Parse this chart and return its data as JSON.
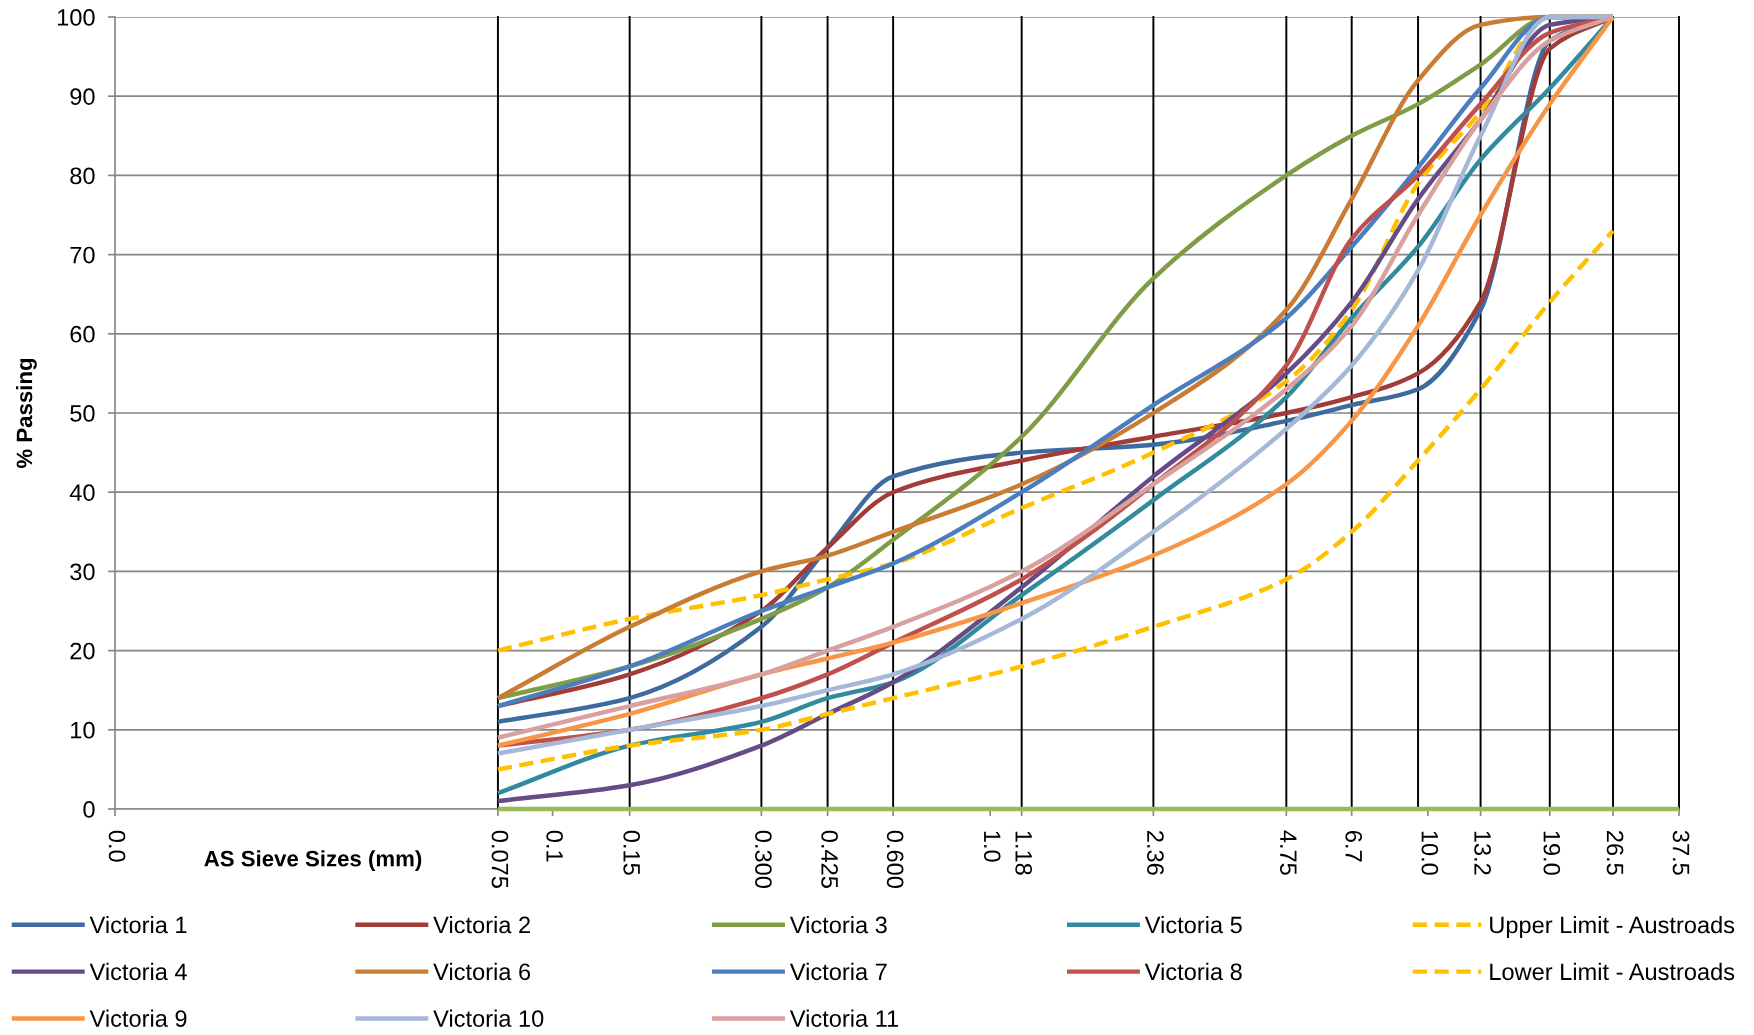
{
  "chart_data": {
    "type": "line",
    "xlabel": "AS Sieve Sizes (mm)",
    "ylabel": "% Passing",
    "log": "x",
    "x": [
      0.075,
      0.15,
      0.3,
      0.425,
      0.6,
      1.18,
      2.36,
      4.75,
      6.7,
      9.5,
      13.2,
      19.0,
      26.5
    ],
    "xlim": [
      0.01,
      37.5
    ],
    "xticks": [
      {
        "value": 0.01,
        "label": "0.0"
      },
      0.075,
      0.1,
      0.15,
      {
        "value": 0.3,
        "label": "0.300"
      },
      0.425,
      {
        "value": 0.6,
        "label": "0.600"
      },
      {
        "value": 1,
        "label": "1.0"
      },
      1.18,
      2.36,
      4.75,
      6.7,
      {
        "value": 10,
        "label": "10.0"
      },
      13.2,
      {
        "value": 19,
        "label": "19.0"
      },
      26.5,
      37.5
    ],
    "ylim": [
      0,
      100
    ],
    "yticks": [
      0,
      10,
      20,
      30,
      40,
      50,
      60,
      70,
      80,
      90,
      100
    ],
    "grid": "y",
    "legend": "bottom",
    "ref_lines": [
      {
        "axis": "x",
        "value": 0.075,
        "color": "#000000"
      },
      {
        "axis": "x",
        "value": 0.15,
        "color": "#000000"
      },
      {
        "axis": "x",
        "value": 0.3,
        "color": "#000000"
      },
      {
        "axis": "x",
        "value": 0.425,
        "color": "#000000"
      },
      {
        "axis": "x",
        "value": 0.6,
        "color": "#000000"
      },
      {
        "axis": "x",
        "value": 1.18,
        "color": "#000000"
      },
      {
        "axis": "x",
        "value": 2.36,
        "color": "#000000"
      },
      {
        "axis": "x",
        "value": 4.75,
        "color": "#000000"
      },
      {
        "axis": "x",
        "value": 6.7,
        "color": "#000000"
      },
      {
        "axis": "x",
        "value": 9.5,
        "color": "#000000"
      },
      {
        "axis": "x",
        "value": 13.2,
        "color": "#000000"
      },
      {
        "axis": "x",
        "value": 19.0,
        "color": "#000000"
      },
      {
        "axis": "x",
        "value": 26.5,
        "color": "#000000"
      }
    ],
    "series": [
      {
        "color": "#9bbb59",
        "x": [
          0.075,
          37.5
        ],
        "values": [
          0,
          0
        ]
      },
      {
        "name": "Victoria 1",
        "color": "#3d6b9e",
        "values": [
          11,
          14,
          23,
          33,
          42,
          45,
          46,
          49,
          51,
          53,
          63,
          97,
          100
        ]
      },
      {
        "name": "Victoria 2",
        "color": "#a13c39",
        "values": [
          13,
          17,
          25,
          33,
          40,
          44,
          47,
          50,
          52,
          55,
          64,
          96,
          100
        ]
      },
      {
        "name": "Victoria 3",
        "color": "#7f9d45",
        "values": [
          14,
          18,
          24,
          28,
          34,
          47,
          67,
          80,
          85,
          89,
          94,
          100,
          100
        ]
      },
      {
        "name": "Victoria 5",
        "color": "#318a9e",
        "values": [
          2,
          8,
          11,
          14,
          16,
          27,
          39,
          52,
          62,
          71,
          82,
          91,
          100
        ]
      },
      {
        "name": "Upper Limit - Austroads",
        "color": "#ffc000",
        "line_style": "dashed",
        "values": [
          20,
          24,
          27,
          29,
          31,
          38,
          45,
          54,
          63,
          79,
          88,
          100,
          100
        ]
      },
      {
        "name": "Victoria 4",
        "color": "#654c86",
        "values": [
          1,
          3,
          8,
          12,
          16,
          28,
          42,
          55,
          64,
          77,
          87,
          99,
          100
        ]
      },
      {
        "name": "Victoria 6",
        "color": "#c97c33",
        "values": [
          14,
          23,
          30,
          32,
          35,
          41,
          50,
          63,
          77,
          92,
          99,
          100,
          100
        ]
      },
      {
        "name": "Victoria 7",
        "color": "#4a7ebf",
        "values": [
          13,
          18,
          25,
          28,
          31,
          40,
          51,
          62,
          71,
          81,
          91,
          100,
          100
        ]
      },
      {
        "name": "Victoria 8",
        "color": "#c0504d",
        "values": [
          8,
          10,
          14,
          17,
          21,
          29,
          41,
          56,
          72,
          80,
          89,
          98,
          100
        ]
      },
      {
        "name": "Lower Limit - Austroads",
        "color": "#ffc000",
        "line_style": "dashed",
        "values": [
          5,
          8,
          10,
          12,
          14,
          18,
          23,
          29,
          35,
          44,
          53,
          64,
          73
        ]
      },
      {
        "name": "Victoria 9",
        "color": "#f79646",
        "values": [
          8,
          12,
          17,
          19,
          21,
          26,
          32,
          41,
          49,
          61,
          75,
          89,
          100
        ]
      },
      {
        "name": "Victoria 10",
        "color": "#a6b8d8",
        "values": [
          7,
          10,
          13,
          15,
          17,
          24,
          35,
          48,
          56,
          68,
          85,
          100,
          100
        ]
      },
      {
        "name": "Victoria 11",
        "color": "#d8a19f",
        "values": [
          9,
          13,
          17,
          20,
          23,
          30,
          41,
          53,
          61,
          75,
          87,
          97,
          100
        ]
      }
    ]
  }
}
